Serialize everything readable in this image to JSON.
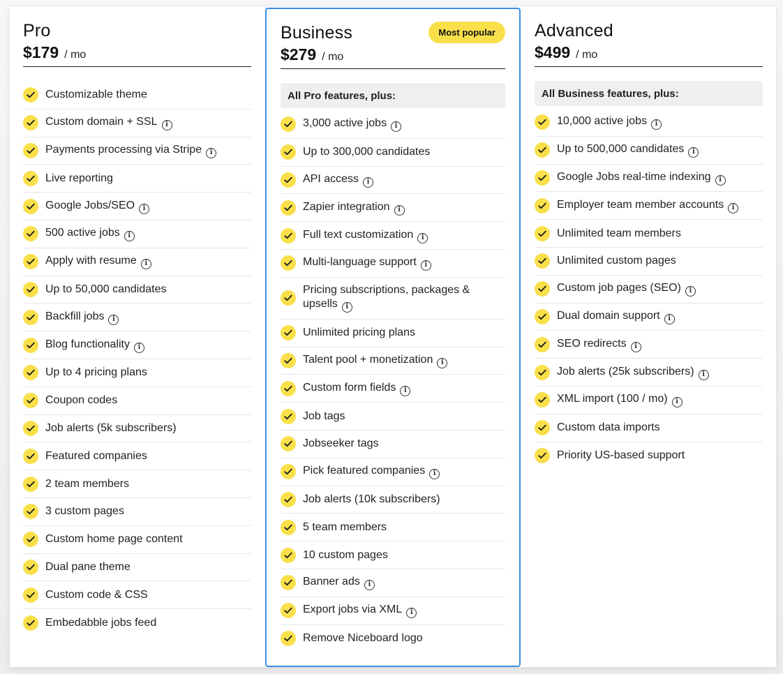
{
  "plans": [
    {
      "name": "Pro",
      "price": "$179",
      "period": "/ mo",
      "features": [
        {
          "text": "Customizable theme",
          "info": false
        },
        {
          "text": "Custom domain + SSL",
          "info": true
        },
        {
          "text": "Payments processing via Stripe",
          "info": true
        },
        {
          "text": "Live reporting",
          "info": false
        },
        {
          "text": "Google Jobs/SEO",
          "info": true
        },
        {
          "text": "500 active jobs",
          "info": true
        },
        {
          "text": "Apply with resume",
          "info": true
        },
        {
          "text": "Up to 50,000 candidates",
          "info": false
        },
        {
          "text": "Backfill jobs",
          "info": true
        },
        {
          "text": "Blog functionality",
          "info": true
        },
        {
          "text": "Up to 4 pricing plans",
          "info": false
        },
        {
          "text": "Coupon codes",
          "info": false
        },
        {
          "text": "Job alerts (5k subscribers)",
          "info": false
        },
        {
          "text": "Featured companies",
          "info": false
        },
        {
          "text": "2 team members",
          "info": false
        },
        {
          "text": "3 custom pages",
          "info": false
        },
        {
          "text": "Custom home page content",
          "info": false
        },
        {
          "text": "Dual pane theme",
          "info": false
        },
        {
          "text": "Custom code & CSS",
          "info": false
        },
        {
          "text": "Embedabble jobs feed",
          "info": false
        }
      ]
    },
    {
      "name": "Business",
      "price": "$279",
      "period": "/ mo",
      "badge": "Most popular",
      "plus_label": "All Pro features, plus:",
      "features": [
        {
          "text": "3,000 active jobs",
          "info": true
        },
        {
          "text": "Up to 300,000 candidates",
          "info": false
        },
        {
          "text": "API access",
          "info": true
        },
        {
          "text": "Zapier integration",
          "info": true
        },
        {
          "text": "Full text customization",
          "info": true
        },
        {
          "text": "Multi-language support",
          "info": true
        },
        {
          "text": "Pricing subscriptions, packages & upsells",
          "info": true
        },
        {
          "text": "Unlimited pricing plans",
          "info": false
        },
        {
          "text": "Talent pool + monetization",
          "info": true
        },
        {
          "text": "Custom form fields",
          "info": true
        },
        {
          "text": "Job tags",
          "info": false
        },
        {
          "text": "Jobseeker tags",
          "info": false
        },
        {
          "text": "Pick featured companies",
          "info": true
        },
        {
          "text": "Job alerts (10k subscribers)",
          "info": false
        },
        {
          "text": "5 team members",
          "info": false
        },
        {
          "text": "10 custom pages",
          "info": false
        },
        {
          "text": "Banner ads",
          "info": true
        },
        {
          "text": "Export jobs via XML",
          "info": true
        },
        {
          "text": "Remove Niceboard logo",
          "info": false
        }
      ]
    },
    {
      "name": "Advanced",
      "price": "$499",
      "period": "/ mo",
      "plus_label": "All Business features, plus:",
      "features": [
        {
          "text": "10,000 active jobs",
          "info": true
        },
        {
          "text": "Up to 500,000 candidates",
          "info": true
        },
        {
          "text": "Google Jobs real-time indexing",
          "info": true
        },
        {
          "text": "Employer team member accounts",
          "info": true
        },
        {
          "text": "Unlimited team members",
          "info": false
        },
        {
          "text": "Unlimited custom pages",
          "info": false
        },
        {
          "text": "Custom job pages (SEO)",
          "info": true
        },
        {
          "text": "Dual domain support",
          "info": true
        },
        {
          "text": "SEO redirects",
          "info": true
        },
        {
          "text": "Job alerts (25k subscribers)",
          "info": true
        },
        {
          "text": "XML import (100 / mo)",
          "info": true
        },
        {
          "text": "Custom data imports",
          "info": false
        },
        {
          "text": "Priority US-based support",
          "info": false
        }
      ]
    }
  ],
  "info_glyph": "i",
  "colors": {
    "accent_yellow": "#f9e04b",
    "highlight_border": "#3b8fe6",
    "plus_box_bg": "#efefef"
  }
}
